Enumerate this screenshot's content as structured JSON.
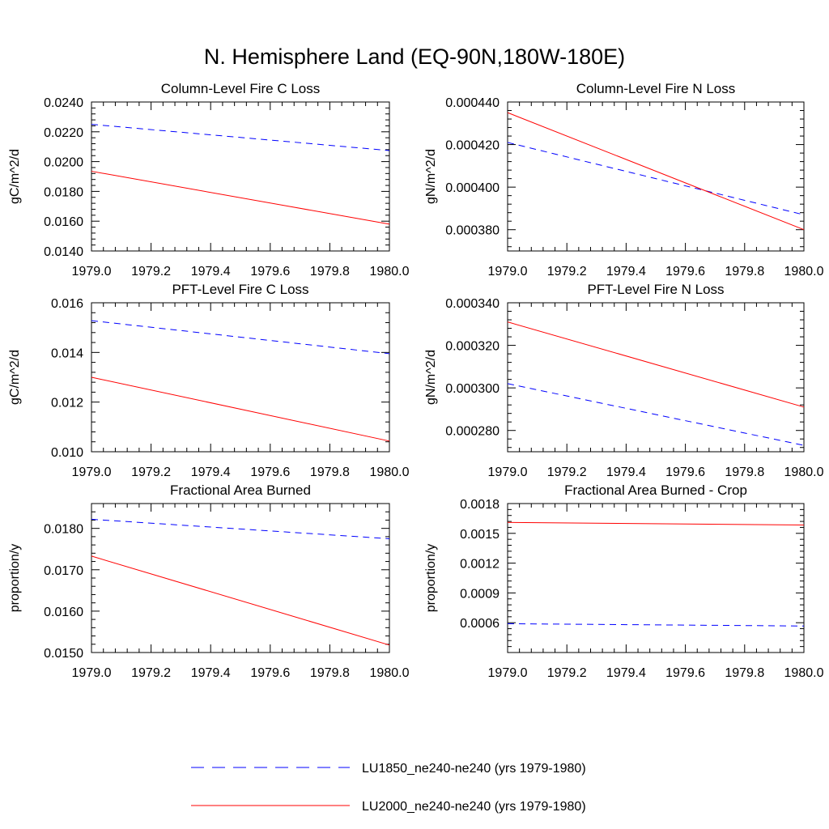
{
  "figure": {
    "title": "N. Hemisphere Land (EQ-90N,180W-180E)"
  },
  "legend": {
    "entries": [
      {
        "label": "LU1850_ne240-ne240 (yrs 1979-1980)",
        "color": "#0000ff",
        "dash": "dashed"
      },
      {
        "label": "LU2000_ne240-ne240 (yrs 1979-1980)",
        "color": "#ff0000",
        "dash": "solid"
      }
    ]
  },
  "chart_data": [
    {
      "type": "line",
      "title": "Column-Level Fire C Loss",
      "xlabel": "",
      "ylabel": "gC/m^2/d",
      "xlim": [
        1979.0,
        1980.0
      ],
      "ylim": [
        0.014,
        0.024
      ],
      "xticks": [
        1979.0,
        1979.2,
        1979.4,
        1979.6,
        1979.8,
        1980.0
      ],
      "xtick_labels": [
        "1979.0",
        "1979.2",
        "1979.4",
        "1979.6",
        "1979.8",
        "1980.0"
      ],
      "yticks": [
        0.014,
        0.016,
        0.018,
        0.02,
        0.022,
        0.024
      ],
      "ytick_labels": [
        "0.0140",
        "0.0160",
        "0.0180",
        "0.0200",
        "0.0220",
        "0.0240"
      ],
      "series": [
        {
          "name": "LU1850_ne240-ne240 (yrs 1979-1980)",
          "x": [
            1979.0,
            1980.0
          ],
          "y": [
            0.0225,
            0.02074
          ]
        },
        {
          "name": "LU2000_ne240-ne240 (yrs 1979-1980)",
          "x": [
            1979.0,
            1980.0
          ],
          "y": [
            0.01935,
            0.0158
          ]
        }
      ]
    },
    {
      "type": "line",
      "title": "Column-Level Fire N Loss",
      "xlabel": "",
      "ylabel": "gN/m^2/d",
      "xlim": [
        1979.0,
        1980.0
      ],
      "ylim": [
        0.00037,
        0.00044
      ],
      "xticks": [
        1979.0,
        1979.2,
        1979.4,
        1979.6,
        1979.8,
        1980.0
      ],
      "xtick_labels": [
        "1979.0",
        "1979.2",
        "1979.4",
        "1979.6",
        "1979.8",
        "1980.0"
      ],
      "yticks": [
        0.00038,
        0.0004,
        0.00042,
        0.00044
      ],
      "ytick_labels": [
        "0.000380",
        "0.000400",
        "0.000420",
        "0.000440"
      ],
      "series": [
        {
          "name": "LU1850_ne240-ne240 (yrs 1979-1980)",
          "x": [
            1979.0,
            1980.0
          ],
          "y": [
            0.000421,
            0.000387
          ]
        },
        {
          "name": "LU2000_ne240-ne240 (yrs 1979-1980)",
          "x": [
            1979.0,
            1980.0
          ],
          "y": [
            0.000435,
            0.00038
          ]
        }
      ]
    },
    {
      "type": "line",
      "title": "PFT-Level Fire C Loss",
      "xlabel": "",
      "ylabel": "gC/m^2/d",
      "xlim": [
        1979.0,
        1980.0
      ],
      "ylim": [
        0.01,
        0.016
      ],
      "xticks": [
        1979.0,
        1979.2,
        1979.4,
        1979.6,
        1979.8,
        1980.0
      ],
      "xtick_labels": [
        "1979.0",
        "1979.2",
        "1979.4",
        "1979.6",
        "1979.8",
        "1980.0"
      ],
      "yticks": [
        0.01,
        0.012,
        0.014,
        0.016
      ],
      "ytick_labels": [
        "0.010",
        "0.012",
        "0.014",
        "0.016"
      ],
      "series": [
        {
          "name": "LU1850_ne240-ne240 (yrs 1979-1980)",
          "x": [
            1979.0,
            1980.0
          ],
          "y": [
            0.01528,
            0.01395
          ]
        },
        {
          "name": "LU2000_ne240-ne240 (yrs 1979-1980)",
          "x": [
            1979.0,
            1980.0
          ],
          "y": [
            0.013,
            0.01043
          ]
        }
      ]
    },
    {
      "type": "line",
      "title": "PFT-Level Fire N Loss",
      "xlabel": "",
      "ylabel": "gN/m^2/d",
      "xlim": [
        1979.0,
        1980.0
      ],
      "ylim": [
        0.00027,
        0.00034
      ],
      "xticks": [
        1979.0,
        1979.2,
        1979.4,
        1979.6,
        1979.8,
        1980.0
      ],
      "xtick_labels": [
        "1979.0",
        "1979.2",
        "1979.4",
        "1979.6",
        "1979.8",
        "1980.0"
      ],
      "yticks": [
        0.00028,
        0.0003,
        0.00032,
        0.00034
      ],
      "ytick_labels": [
        "0.000280",
        "0.000300",
        "0.000320",
        "0.000340"
      ],
      "series": [
        {
          "name": "LU1850_ne240-ne240 (yrs 1979-1980)",
          "x": [
            1979.0,
            1980.0
          ],
          "y": [
            0.000302,
            0.000273
          ]
        },
        {
          "name": "LU2000_ne240-ne240 (yrs 1979-1980)",
          "x": [
            1979.0,
            1980.0
          ],
          "y": [
            0.000331,
            0.000291
          ]
        }
      ]
    },
    {
      "type": "line",
      "title": "Fractional Area Burned",
      "xlabel": "",
      "ylabel": "proportion/y",
      "xlim": [
        1979.0,
        1980.0
      ],
      "ylim": [
        0.015,
        0.0186
      ],
      "xticks": [
        1979.0,
        1979.2,
        1979.4,
        1979.6,
        1979.8,
        1980.0
      ],
      "xtick_labels": [
        "1979.0",
        "1979.2",
        "1979.4",
        "1979.6",
        "1979.8",
        "1980.0"
      ],
      "yticks": [
        0.015,
        0.016,
        0.017,
        0.018
      ],
      "ytick_labels": [
        "0.0150",
        "0.0160",
        "0.0170",
        "0.0180"
      ],
      "series": [
        {
          "name": "LU1850_ne240-ne240 (yrs 1979-1980)",
          "x": [
            1979.0,
            1980.0
          ],
          "y": [
            0.01822,
            0.01775
          ]
        },
        {
          "name": "LU2000_ne240-ne240 (yrs 1979-1980)",
          "x": [
            1979.0,
            1980.0
          ],
          "y": [
            0.01733,
            0.01518
          ]
        }
      ]
    },
    {
      "type": "line",
      "title": "Fractional Area Burned - Crop",
      "xlabel": "",
      "ylabel": "proportion/y",
      "xlim": [
        1979.0,
        1980.0
      ],
      "ylim": [
        0.0003,
        0.0018
      ],
      "xticks": [
        1979.0,
        1979.2,
        1979.4,
        1979.6,
        1979.8,
        1980.0
      ],
      "xtick_labels": [
        "1979.0",
        "1979.2",
        "1979.4",
        "1979.6",
        "1979.8",
        "1980.0"
      ],
      "yticks": [
        0.0006,
        0.0009,
        0.0012,
        0.0015,
        0.0018
      ],
      "ytick_labels": [
        "0.0006",
        "0.0009",
        "0.0012",
        "0.0015",
        "0.0018"
      ],
      "series": [
        {
          "name": "LU1850_ne240-ne240 (yrs 1979-1980)",
          "x": [
            1979.0,
            1980.0
          ],
          "y": [
            0.00059,
            0.000567
          ]
        },
        {
          "name": "LU2000_ne240-ne240 (yrs 1979-1980)",
          "x": [
            1979.0,
            1980.0
          ],
          "y": [
            0.00161,
            0.001584
          ]
        }
      ]
    }
  ]
}
